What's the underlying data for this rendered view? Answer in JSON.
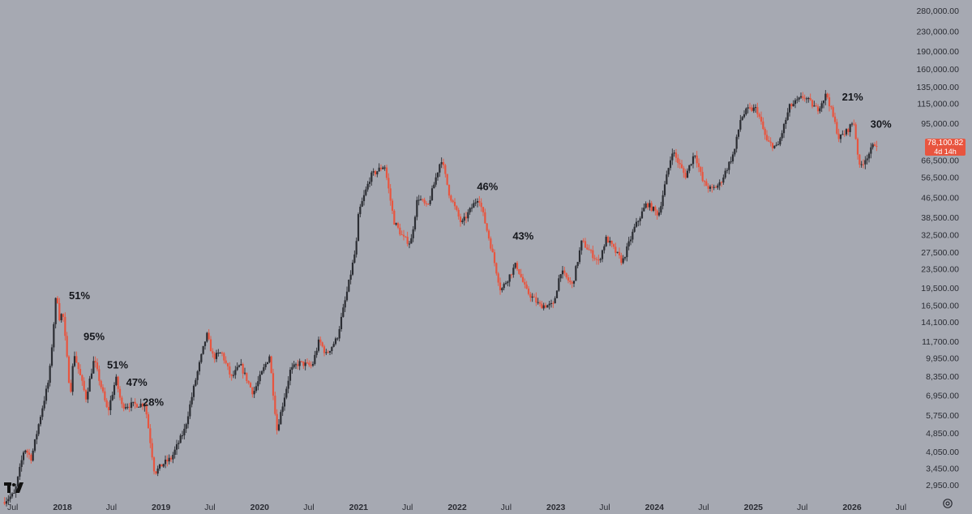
{
  "chart_data": {
    "type": "candlestick",
    "y_scale": "log",
    "ylim": [
      2600,
      310000
    ],
    "y_ticks": [
      "280,000.00",
      "230,000.00",
      "190,000.00",
      "160,000.00",
      "135,000.00",
      "115,000.00",
      "95,000.00",
      "78,100.82",
      "66,500.00",
      "56,500.00",
      "46,500.00",
      "38,500.00",
      "32,500.00",
      "27,500.00",
      "23,500.00",
      "19,500.00",
      "16,500.00",
      "14,100.00",
      "11,700.00",
      "9,950.00",
      "8,350.00",
      "6,950.00",
      "5,750.00",
      "4,850.00",
      "4,050.00",
      "3,450.00",
      "2,950.00"
    ],
    "x_ticks": [
      {
        "label": "Jul",
        "date": "2017-07-01",
        "major": false
      },
      {
        "label": "2018",
        "date": "2018-01-01",
        "major": true
      },
      {
        "label": "Jul",
        "date": "2018-07-01",
        "major": false
      },
      {
        "label": "2019",
        "date": "2019-01-01",
        "major": true
      },
      {
        "label": "Jul",
        "date": "2019-07-01",
        "major": false
      },
      {
        "label": "2020",
        "date": "2020-01-01",
        "major": true
      },
      {
        "label": "Jul",
        "date": "2020-07-01",
        "major": false
      },
      {
        "label": "2021",
        "date": "2021-01-01",
        "major": true
      },
      {
        "label": "Jul",
        "date": "2021-07-01",
        "major": false
      },
      {
        "label": "2022",
        "date": "2022-01-01",
        "major": true
      },
      {
        "label": "Jul",
        "date": "2022-07-01",
        "major": false
      },
      {
        "label": "2023",
        "date": "2023-01-01",
        "major": true
      },
      {
        "label": "Jul",
        "date": "2023-07-01",
        "major": false
      },
      {
        "label": "2024",
        "date": "2024-01-01",
        "major": true
      },
      {
        "label": "Jul",
        "date": "2024-07-01",
        "major": false
      },
      {
        "label": "2025",
        "date": "2025-01-01",
        "major": true
      },
      {
        "label": "Jul",
        "date": "2025-07-01",
        "major": false
      },
      {
        "label": "2026",
        "date": "2026-01-01",
        "major": true
      },
      {
        "label": "Jul",
        "date": "2026-07-01",
        "major": false
      }
    ],
    "price_path": [
      [
        "2017-06-01",
        2500
      ],
      [
        "2017-07-15",
        2700
      ],
      [
        "2017-08-20",
        4200
      ],
      [
        "2017-09-15",
        3800
      ],
      [
        "2017-10-20",
        5800
      ],
      [
        "2017-11-20",
        8200
      ],
      [
        "2017-12-17",
        19000
      ],
      [
        "2017-12-30",
        14000
      ],
      [
        "2018-01-08",
        16000
      ],
      [
        "2018-02-06",
        7000
      ],
      [
        "2018-02-20",
        10500
      ],
      [
        "2018-04-05",
        6800
      ],
      [
        "2018-05-05",
        9800
      ],
      [
        "2018-06-25",
        5900
      ],
      [
        "2018-07-25",
        8200
      ],
      [
        "2018-08-15",
        6300
      ],
      [
        "2018-11-10",
        6400
      ],
      [
        "2018-12-15",
        3300
      ],
      [
        "2019-01-15",
        3600
      ],
      [
        "2019-02-15",
        3800
      ],
      [
        "2019-04-05",
        5000
      ],
      [
        "2019-05-15",
        8000
      ],
      [
        "2019-06-26",
        12500
      ],
      [
        "2019-07-20",
        10000
      ],
      [
        "2019-08-20",
        10500
      ],
      [
        "2019-09-25",
        8200
      ],
      [
        "2019-10-28",
        9300
      ],
      [
        "2019-12-15",
        7100
      ],
      [
        "2020-02-13",
        10200
      ],
      [
        "2020-03-12",
        5000
      ],
      [
        "2020-04-30",
        8800
      ],
      [
        "2020-06-01",
        9500
      ],
      [
        "2020-07-20",
        9200
      ],
      [
        "2020-08-15",
        11800
      ],
      [
        "2020-09-10",
        10300
      ],
      [
        "2020-10-20",
        12000
      ],
      [
        "2020-11-25",
        18500
      ],
      [
        "2020-12-30",
        29000
      ],
      [
        "2021-01-08",
        40000
      ],
      [
        "2021-02-21",
        57000
      ],
      [
        "2021-04-14",
        63500
      ],
      [
        "2021-05-19",
        37000
      ],
      [
        "2021-06-22",
        31500
      ],
      [
        "2021-07-20",
        30000
      ],
      [
        "2021-08-15",
        47000
      ],
      [
        "2021-09-20",
        42000
      ],
      [
        "2021-11-10",
        68000
      ],
      [
        "2021-12-10",
        48000
      ],
      [
        "2022-01-24",
        36000
      ],
      [
        "2022-03-28",
        47000
      ],
      [
        "2022-05-10",
        30000
      ],
      [
        "2022-06-18",
        19000
      ],
      [
        "2022-08-14",
        24500
      ],
      [
        "2022-09-20",
        19000
      ],
      [
        "2022-11-09",
        16500
      ],
      [
        "2022-12-30",
        16500
      ],
      [
        "2023-01-25",
        23000
      ],
      [
        "2023-03-10",
        20000
      ],
      [
        "2023-04-14",
        30500
      ],
      [
        "2023-06-15",
        25000
      ],
      [
        "2023-07-14",
        31500
      ],
      [
        "2023-09-11",
        25000
      ],
      [
        "2023-10-25",
        34500
      ],
      [
        "2023-12-10",
        44000
      ],
      [
        "2024-01-23",
        39500
      ],
      [
        "2024-03-14",
        73000
      ],
      [
        "2024-05-01",
        57000
      ],
      [
        "2024-06-05",
        71500
      ],
      [
        "2024-07-05",
        54000
      ],
      [
        "2024-08-05",
        50000
      ],
      [
        "2024-09-06",
        53000
      ],
      [
        "2024-10-29",
        72000
      ],
      [
        "2024-11-22",
        99500
      ],
      [
        "2024-12-17",
        108000
      ],
      [
        "2025-01-20",
        109000
      ],
      [
        "2025-02-28",
        79000
      ],
      [
        "2025-04-07",
        75000
      ],
      [
        "2025-05-22",
        111000
      ],
      [
        "2025-07-14",
        123000
      ],
      [
        "2025-09-01",
        108000
      ],
      [
        "2025-10-06",
        126000
      ],
      [
        "2025-11-21",
        82000
      ],
      [
        "2025-12-20",
        88000
      ],
      [
        "2026-01-14",
        97000
      ],
      [
        "2026-02-05",
        62000
      ],
      [
        "2026-02-28",
        68000
      ],
      [
        "2026-03-15",
        72000
      ],
      [
        "2026-04-02",
        78100
      ]
    ],
    "current_price": "78,100.82",
    "countdown": "4d 14h",
    "annotations": [
      {
        "label": "51%",
        "date": "2018-01-25",
        "price": 17500
      },
      {
        "label": "95%",
        "date": "2018-03-20",
        "price": 11800
      },
      {
        "label": "51%",
        "date": "2018-06-15",
        "price": 9000
      },
      {
        "label": "47%",
        "date": "2018-08-25",
        "price": 7600
      },
      {
        "label": "28%",
        "date": "2018-10-25",
        "price": 6300
      },
      {
        "label": "46%",
        "date": "2022-03-15",
        "price": 50000
      },
      {
        "label": "43%",
        "date": "2022-07-25",
        "price": 31000
      },
      {
        "label": "21%",
        "date": "2025-11-25",
        "price": 118000
      },
      {
        "label": "30%",
        "date": "2026-03-10",
        "price": 91000
      }
    ],
    "colors": {
      "up": "#2b2d33",
      "down": "#e8553f",
      "background": "#a6a9b2",
      "text": "#15171c"
    }
  },
  "ui": {
    "logo": "tradingview-logo-icon",
    "settings": "settings-gear-icon"
  }
}
